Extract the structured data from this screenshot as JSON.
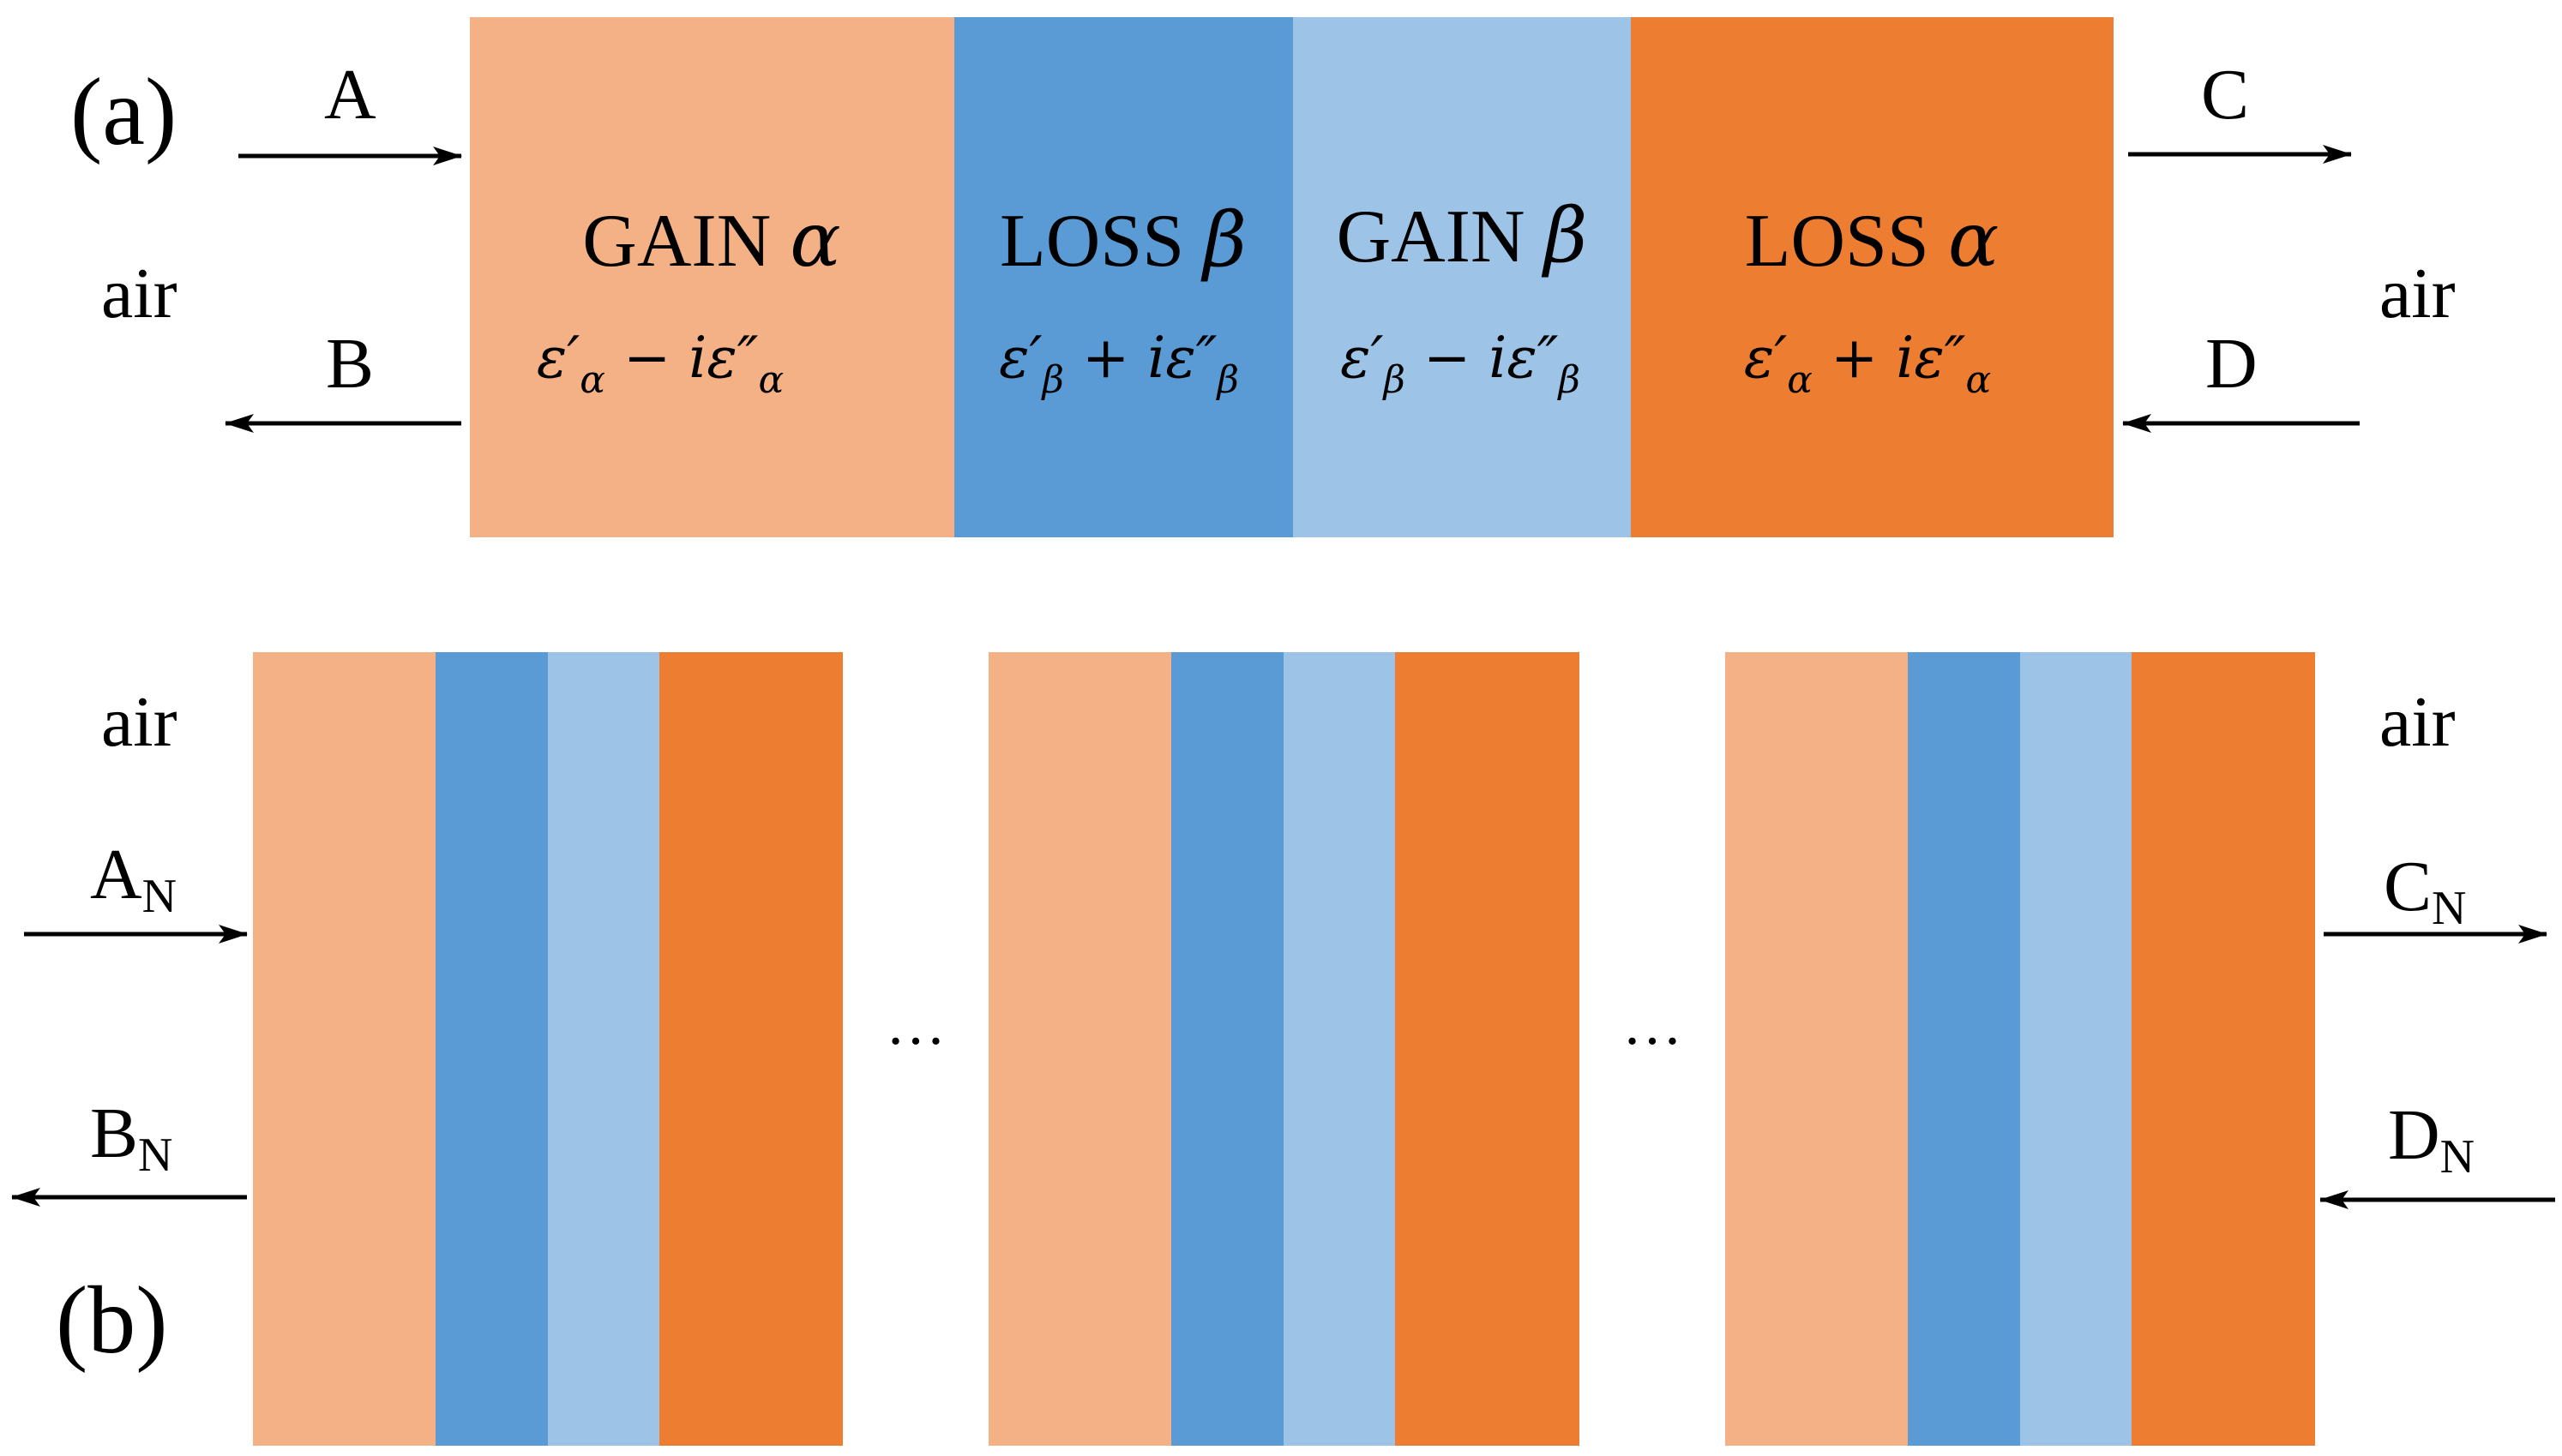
{
  "colors": {
    "gain_alpha": "#F3B185",
    "loss_beta": "#5B9BD5",
    "gain_beta": "#9DC3E6",
    "loss_alpha": "#ED7D31"
  },
  "panel_a": {
    "label": "(a)",
    "left_medium": "air",
    "right_medium": "air",
    "ports": {
      "A": "A",
      "B": "B",
      "C": "C",
      "D": "D"
    },
    "layers": [
      {
        "name": "GAIN",
        "symbol": "α",
        "eps_prime": "ε′",
        "sub": "α",
        "sign": "−",
        "eps_im": "iε″"
      },
      {
        "name": "LOSS",
        "symbol": "β",
        "eps_prime": "ε′",
        "sub": "β",
        "sign": "+",
        "eps_im": "iε″"
      },
      {
        "name": "GAIN",
        "symbol": "β",
        "eps_prime": "ε′",
        "sub": "β",
        "sign": "−",
        "eps_im": "iε″"
      },
      {
        "name": "LOSS",
        "symbol": "α",
        "eps_prime": "ε′",
        "sub": "α",
        "sign": "+",
        "eps_im": "iε″"
      }
    ]
  },
  "panel_b": {
    "label": "(b)",
    "left_medium": "air",
    "right_medium": "air",
    "ports": {
      "A": {
        "base": "A",
        "sub": "N"
      },
      "B": {
        "base": "B",
        "sub": "N"
      },
      "C": {
        "base": "C",
        "sub": "N"
      },
      "D": {
        "base": "D",
        "sub": "N"
      }
    },
    "ellipsis": "…",
    "unit_cells": 3
  }
}
